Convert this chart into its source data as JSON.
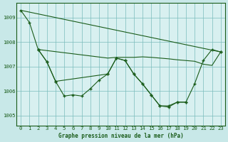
{
  "title": "Graphe pression niveau de la mer (hPa)",
  "background_color": "#c8e8e8",
  "plot_bg_color": "#d8f0f0",
  "grid_color": "#7abcbc",
  "line_color": "#1a5c1a",
  "x_ticks": [
    0,
    1,
    2,
    3,
    4,
    5,
    6,
    7,
    8,
    9,
    10,
    11,
    12,
    13,
    14,
    15,
    16,
    17,
    18,
    19,
    20,
    21,
    22,
    23
  ],
  "y_ticks": [
    1005,
    1006,
    1007,
    1008,
    1009
  ],
  "xlim": [
    -0.5,
    23.5
  ],
  "ylim": [
    1004.6,
    1009.6
  ],
  "line1_x": [
    0,
    23
  ],
  "line1_y": [
    1009.3,
    1007.6
  ],
  "line2_x": [
    2,
    10,
    11,
    12,
    13,
    14,
    15,
    16,
    17,
    18,
    19,
    20,
    21,
    22,
    23
  ],
  "line2_y": [
    1007.7,
    1007.35,
    1007.38,
    1007.38,
    1007.38,
    1007.4,
    1007.38,
    1007.35,
    1007.32,
    1007.28,
    1007.25,
    1007.22,
    1007.1,
    1007.05,
    1007.6
  ],
  "line3_x": [
    0,
    1,
    2,
    3,
    4,
    5,
    6,
    7,
    8,
    9,
    10,
    11,
    12,
    13,
    14,
    15,
    16,
    17,
    18,
    19
  ],
  "line3_y": [
    1009.3,
    1008.8,
    1007.7,
    1007.2,
    1006.4,
    1005.8,
    1005.85,
    1005.8,
    1006.1,
    1006.45,
    1006.7,
    1007.35,
    1007.25,
    1006.7,
    1006.3,
    1005.85,
    1005.4,
    1005.4,
    1005.55,
    1005.55
  ],
  "line4_x": [
    2,
    3,
    4,
    10,
    11,
    12,
    13,
    14,
    15,
    16,
    17,
    18,
    19,
    20,
    21,
    22,
    23
  ],
  "line4_y": [
    1007.7,
    1007.2,
    1006.4,
    1006.7,
    1007.35,
    1007.25,
    1006.7,
    1006.3,
    1005.85,
    1005.4,
    1005.35,
    1005.55,
    1005.55,
    1006.3,
    1007.25,
    1007.7,
    1007.6
  ]
}
